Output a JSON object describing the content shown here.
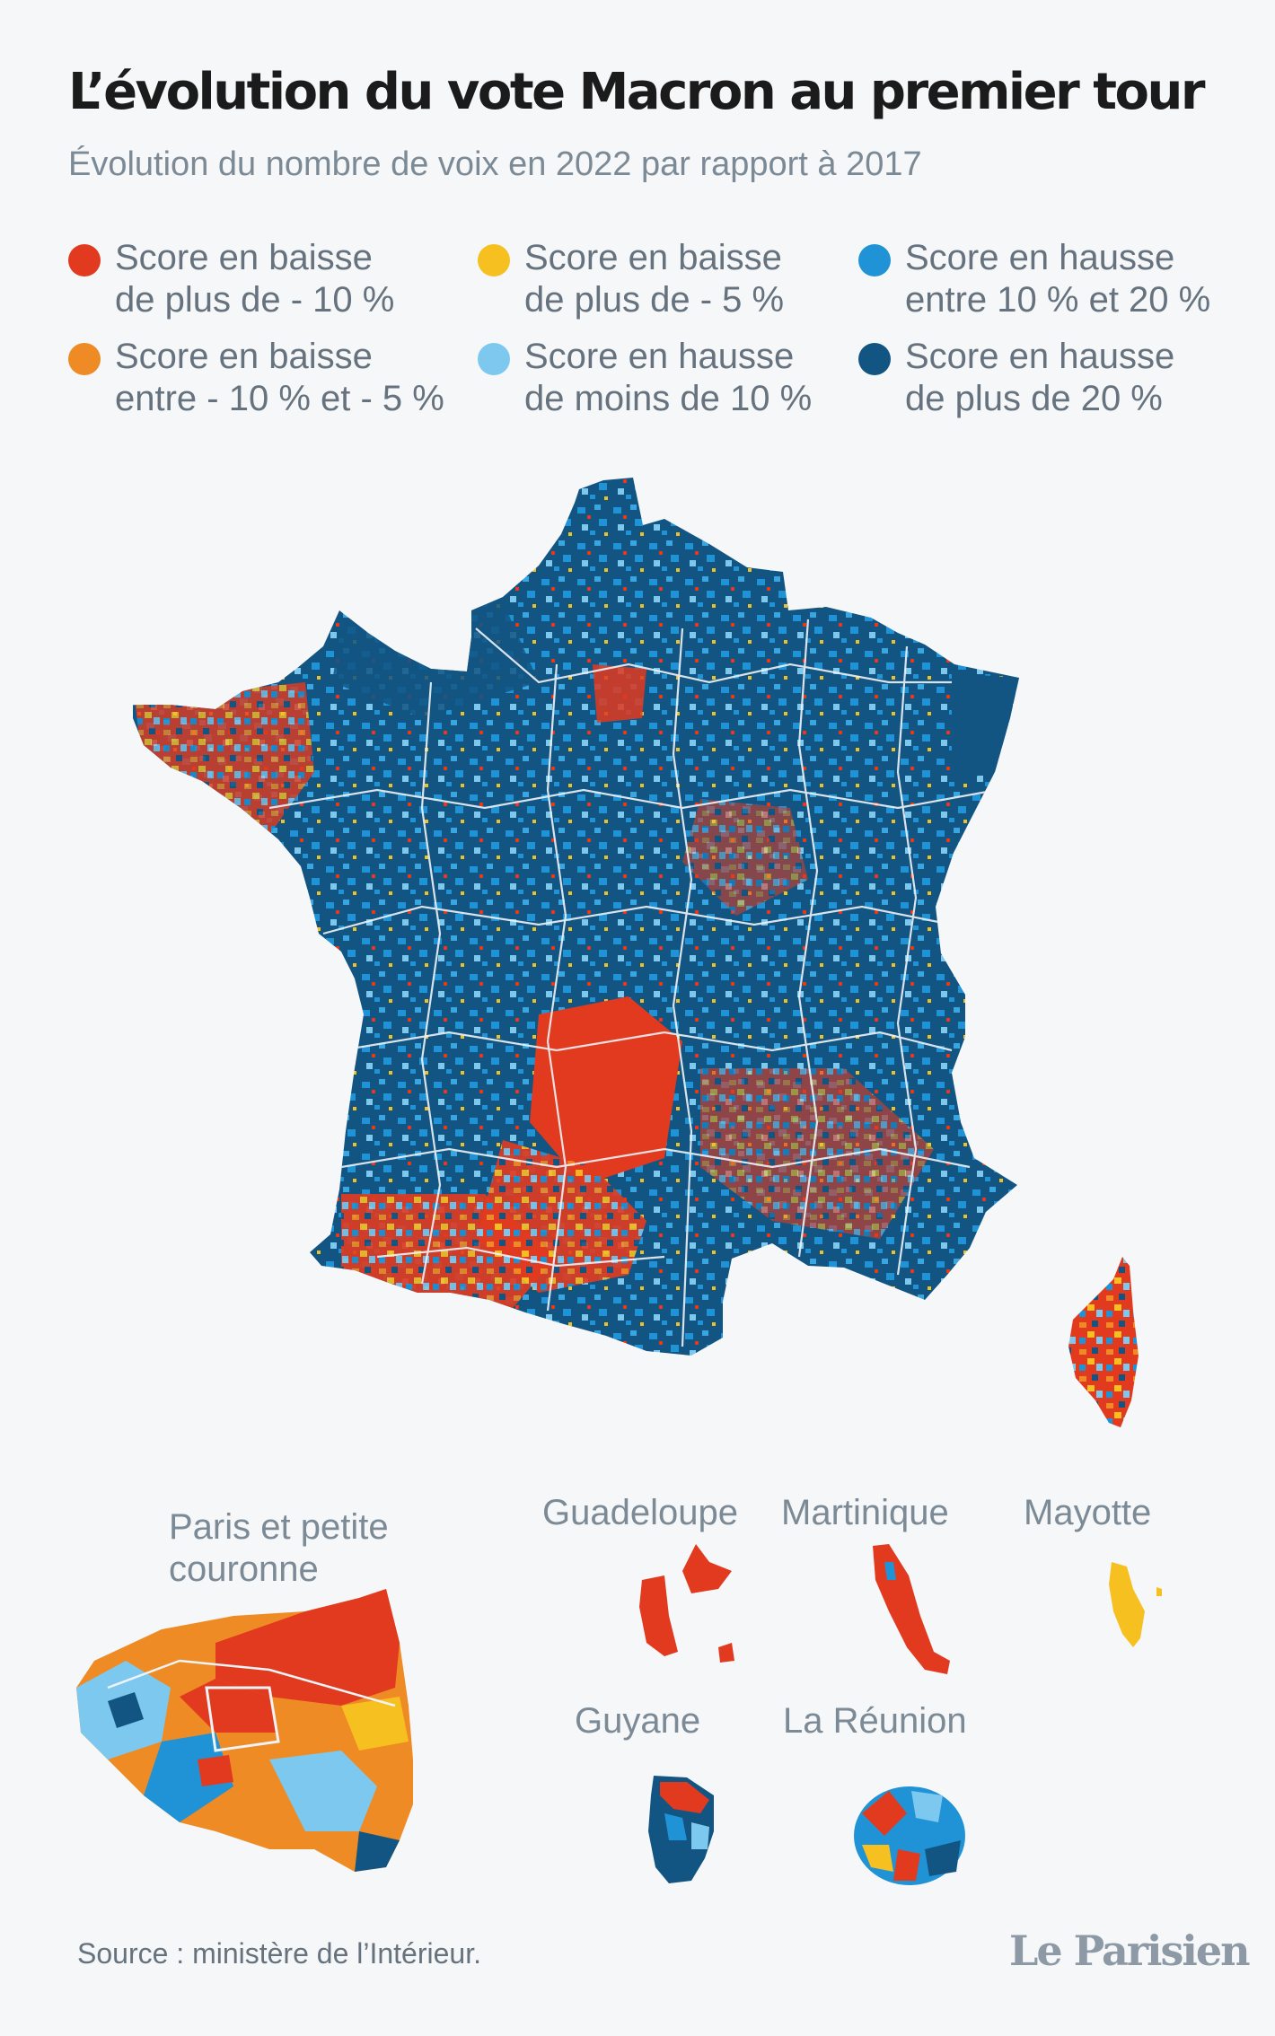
{
  "header": {
    "title": "L’évolution du vote Macron au premier tour",
    "subtitle": "Évolution du nombre de voix en 2022 par rapport à 2017"
  },
  "legend": [
    {
      "line1": "Score en baisse",
      "line2": "de plus de - 10 %",
      "color": "#e23a1f"
    },
    {
      "line1": "Score en baisse",
      "line2": "de plus de - 5 %",
      "color": "#f7c021"
    },
    {
      "line1": "Score en hausse",
      "line2": "entre 10 % et 20 %",
      "color": "#1f93d6"
    },
    {
      "line1": "Score en baisse",
      "line2": "entre - 10 % et - 5 %",
      "color": "#ef8b24"
    },
    {
      "line1": "Score en hausse",
      "line2": "de moins de 10 %",
      "color": "#7cc8ee"
    },
    {
      "line1": "Score en hausse",
      "line2": "de plus de 20 %",
      "color": "#135582"
    }
  ],
  "insets": {
    "paris": {
      "line1": "Paris et petite",
      "line2": "couronne"
    },
    "guadeloupe": "Guadeloupe",
    "martinique": "Martinique",
    "mayotte": "Mayotte",
    "guyane": "Guyane",
    "reunion": "La Réunion"
  },
  "footer": {
    "source": "Source : ministère de l’Intérieur.",
    "logo": "Le Parisien"
  }
}
